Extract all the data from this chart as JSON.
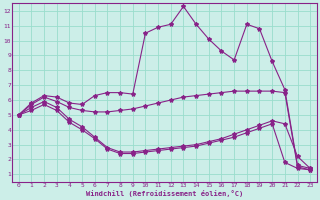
{
  "bg_color": "#cceee8",
  "grid_color": "#99ddcc",
  "line_color": "#882288",
  "spine_color": "#555555",
  "xlabel": "Windchill (Refroidissement éolien,°C)",
  "xlim": [
    -0.5,
    23.5
  ],
  "ylim": [
    0.5,
    12.5
  ],
  "xticks": [
    0,
    1,
    2,
    3,
    4,
    5,
    6,
    7,
    8,
    9,
    10,
    11,
    12,
    13,
    14,
    15,
    16,
    17,
    18,
    19,
    20,
    21,
    22,
    23
  ],
  "yticks": [
    1,
    2,
    3,
    4,
    5,
    6,
    7,
    8,
    9,
    10,
    11,
    12
  ],
  "series": [
    {
      "x": [
        0,
        1,
        2,
        3,
        4,
        5,
        6,
        7,
        8,
        9,
        10,
        11,
        12,
        13,
        14,
        15,
        16,
        17,
        18,
        19,
        20,
        21,
        22,
        23
      ],
      "y": [
        5.0,
        5.8,
        6.3,
        6.2,
        5.8,
        5.7,
        6.3,
        6.5,
        6.5,
        6.4,
        10.5,
        10.9,
        11.1,
        12.3,
        11.1,
        10.1,
        9.3,
        8.7,
        11.1,
        10.8,
        8.6,
        6.7,
        1.6,
        1.4
      ]
    },
    {
      "x": [
        0,
        1,
        2,
        3,
        4,
        5,
        6,
        7,
        8,
        9,
        10,
        11,
        12,
        13,
        14,
        15,
        16,
        17,
        18,
        19,
        20,
        21,
        22,
        23
      ],
      "y": [
        5.0,
        5.7,
        6.2,
        5.9,
        5.5,
        5.3,
        5.2,
        5.2,
        5.3,
        5.4,
        5.6,
        5.8,
        6.0,
        6.2,
        6.3,
        6.4,
        6.5,
        6.6,
        6.6,
        6.6,
        6.6,
        6.5,
        1.5,
        1.3
      ]
    },
    {
      "x": [
        0,
        1,
        2,
        3,
        4,
        5,
        6,
        7,
        8,
        9,
        10,
        11,
        12,
        13,
        14,
        15,
        16,
        17,
        18,
        19,
        20,
        21,
        22,
        23
      ],
      "y": [
        5.0,
        5.5,
        5.9,
        5.5,
        4.7,
        4.2,
        3.5,
        2.8,
        2.5,
        2.5,
        2.6,
        2.7,
        2.8,
        2.9,
        3.0,
        3.2,
        3.4,
        3.7,
        4.0,
        4.3,
        4.6,
        4.4,
        2.2,
        1.4
      ]
    },
    {
      "x": [
        0,
        1,
        2,
        3,
        4,
        5,
        6,
        7,
        8,
        9,
        10,
        11,
        12,
        13,
        14,
        15,
        16,
        17,
        18,
        19,
        20,
        21,
        22,
        23
      ],
      "y": [
        5.0,
        5.3,
        5.7,
        5.3,
        4.5,
        4.0,
        3.4,
        2.7,
        2.4,
        2.4,
        2.5,
        2.6,
        2.7,
        2.8,
        2.9,
        3.1,
        3.3,
        3.5,
        3.8,
        4.1,
        4.4,
        1.8,
        1.4,
        1.3
      ]
    }
  ]
}
